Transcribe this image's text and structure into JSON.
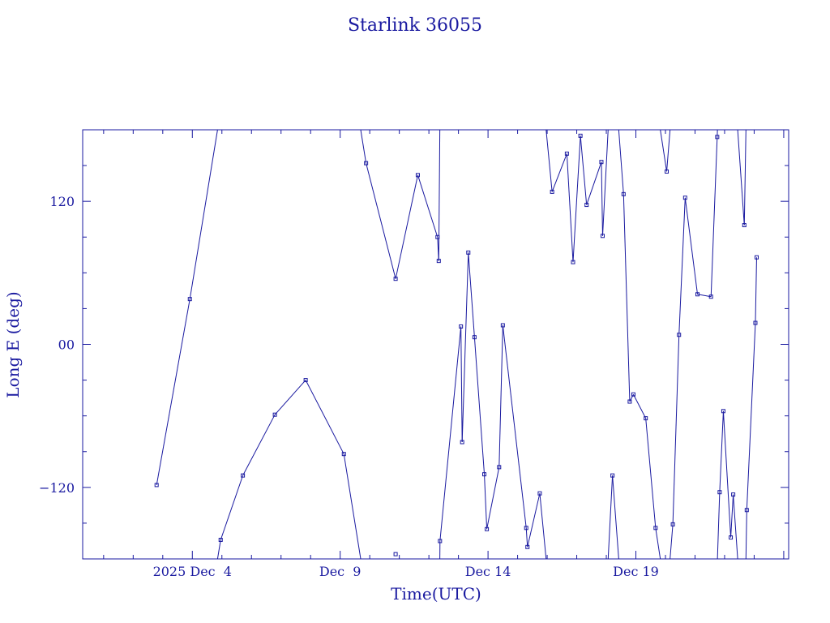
{
  "chart_data": {
    "type": "line",
    "title": "Starlink 36055",
    "xlabel": "Time(UTC)",
    "ylabel": "Long E (deg)",
    "xlim": [
      "2025-11-30 07:00",
      "2025-12-24 04:00"
    ],
    "ylim": [
      -180,
      180
    ],
    "x_major_ticks": [
      "2025-12-04",
      "2025-12-09",
      "2025-12-14",
      "2025-12-19"
    ],
    "x_tick_labels": [
      "2025 Dec  4",
      "Dec  9",
      "Dec 14",
      "Dec 19"
    ],
    "y_major_ticks": [
      -120,
      0,
      120
    ],
    "y_tick_labels": [
      "−120",
      "00",
      "120"
    ],
    "wrap_longitude": true,
    "color": "#1a1aa0",
    "marker": "square",
    "series": [
      {
        "points": [
          [
            "2025-12-02 19:00",
            -118
          ],
          [
            "2025-12-03 22:00",
            38
          ],
          [
            "2025-12-04 23:00",
            -164
          ],
          [
            "2025-12-05 17:00",
            -110
          ],
          [
            "2025-12-06 19:00",
            -59
          ],
          [
            "2025-12-07 20:00",
            -30
          ],
          [
            "2025-12-09 03:00",
            -92
          ],
          [
            "2025-12-09 21:00",
            152
          ],
          [
            "2025-12-10 21:00",
            55
          ],
          [
            "2025-12-11 15:00",
            142
          ],
          [
            "2025-12-12 07:00",
            90
          ],
          [
            "2025-12-12 08:00",
            70
          ],
          [
            "2025-12-12 09:00",
            -165
          ],
          [
            "2025-12-13 02:00",
            15
          ],
          [
            "2025-12-13 03:00",
            -82
          ],
          [
            "2025-12-13 08:00",
            77
          ],
          [
            "2025-12-13 13:00",
            6
          ],
          [
            "2025-12-13 21:00",
            -109
          ],
          [
            "2025-12-13 23:00",
            -155
          ],
          [
            "2025-12-14 09:00",
            -103
          ],
          [
            "2025-12-14 12:00",
            16
          ],
          [
            "2025-12-15 07:00",
            -154
          ],
          [
            "2025-12-15 08:00",
            -170
          ],
          [
            "2025-12-15 18:00",
            -125
          ],
          [
            "2025-12-16 04:00",
            128
          ],
          [
            "2025-12-16 16:00",
            160
          ],
          [
            "2025-12-16 21:00",
            69
          ],
          [
            "2025-12-17 03:00",
            175
          ],
          [
            "2025-12-17 08:00",
            117
          ],
          [
            "2025-12-17 20:00",
            153
          ],
          [
            "2025-12-17 21:00",
            91
          ],
          [
            "2025-12-18 05:00",
            -110
          ],
          [
            "2025-12-18 14:00",
            126
          ],
          [
            "2025-12-18 19:00",
            -48
          ],
          [
            "2025-12-18 22:00",
            -42
          ],
          [
            "2025-12-19 08:00",
            -62
          ],
          [
            "2025-12-19 16:00",
            -154
          ],
          [
            "2025-12-20 01:00",
            145
          ],
          [
            "2025-12-20 06:00",
            -151
          ],
          [
            "2025-12-20 11:00",
            8
          ],
          [
            "2025-12-20 16:00",
            123
          ],
          [
            "2025-12-21 02:00",
            42
          ],
          [
            "2025-12-21 13:00",
            40
          ],
          [
            "2025-12-21 18:00",
            174
          ],
          [
            "2025-12-21 20:00",
            -124
          ],
          [
            "2025-12-21 23:00",
            -56
          ],
          [
            "2025-12-22 05:00",
            -162
          ],
          [
            "2025-12-22 07:00",
            -126
          ],
          [
            "2025-12-22 16:00",
            100
          ],
          [
            "2025-12-22 18:00",
            -139
          ],
          [
            "2025-12-23 01:00",
            18
          ],
          [
            "2025-12-23 02:00",
            73
          ]
        ]
      }
    ],
    "extra_markers": [
      [
        "2025-12-10 21:00",
        -176
      ]
    ]
  }
}
